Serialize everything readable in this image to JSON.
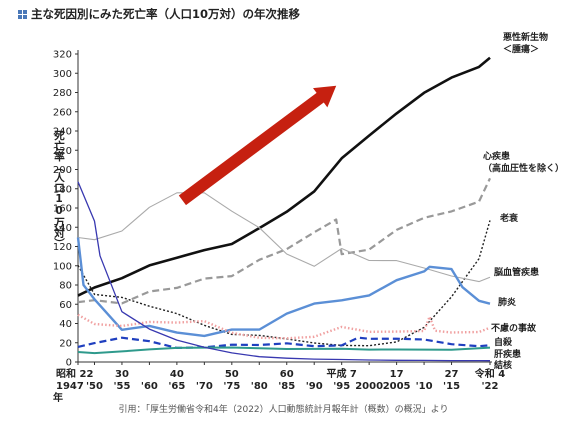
{
  "title": "主な死因別にみた死亡率（人口10万対）の年次推移",
  "title_icon": "plus-square-icon",
  "citation": "引用：「厚生労働省令和4年（2022）人口動態統計月報年計（概数）の概況」より",
  "colors": {
    "cancer": "#111111",
    "heart": "#999999",
    "senility": "#222222",
    "stroke": "#aaaaaa",
    "pneumonia": "#5b8fd6",
    "accident": "#f0a0a0",
    "suicide": "#1f3fbf",
    "liver": "#2e9a8c",
    "tb": "#3838b0",
    "arrow": "#c62010"
  },
  "chart_data": {
    "type": "line",
    "title": "主な死因別にみた死亡率（人口10万対）の年次推移",
    "ylabel": "死亡率（人口10万対）",
    "xlabel": "年",
    "ylim": [
      0,
      320
    ],
    "yticks": [
      0,
      20,
      40,
      60,
      80,
      100,
      120,
      140,
      160,
      180,
      200,
      220,
      240,
      260,
      280,
      300,
      320
    ],
    "xlim": [
      1947,
      2022
    ],
    "xtick_labels": [
      {
        "year": 1947,
        "top": "昭和 22",
        "bottom": "1947"
      },
      {
        "year": 1950,
        "top": "",
        "bottom": "'50"
      },
      {
        "year": 1955,
        "top": "30",
        "bottom": "'55"
      },
      {
        "year": 1960,
        "top": "",
        "bottom": "'60"
      },
      {
        "year": 1965,
        "top": "40",
        "bottom": "'65"
      },
      {
        "year": 1970,
        "top": "",
        "bottom": "'70"
      },
      {
        "year": 1975,
        "top": "50",
        "bottom": "'75"
      },
      {
        "year": 1980,
        "top": "",
        "bottom": "'80"
      },
      {
        "year": 1985,
        "top": "60",
        "bottom": "'85"
      },
      {
        "year": 1990,
        "top": "",
        "bottom": "'90"
      },
      {
        "year": 1995,
        "top": "平成 7",
        "bottom": "'95"
      },
      {
        "year": 2000,
        "top": "",
        "bottom": "2000"
      },
      {
        "year": 2005,
        "top": "17",
        "bottom": "2005"
      },
      {
        "year": 2010,
        "top": "",
        "bottom": "'10"
      },
      {
        "year": 2015,
        "top": "27",
        "bottom": "'15"
      },
      {
        "year": 2022,
        "top": "令和 4",
        "bottom": "'22"
      }
    ],
    "grid": false,
    "legend": "labels at right end of lines",
    "series": [
      {
        "name": "悪性新生物\n＜腫瘍＞",
        "key": "cancer",
        "style": "solid",
        "width": 2.6,
        "x": [
          1947,
          1950,
          1955,
          1960,
          1965,
          1970,
          1975,
          1980,
          1985,
          1990,
          1995,
          2000,
          2005,
          2010,
          2015,
          2020,
          2022
        ],
        "y": [
          69.0,
          77.4,
          87.1,
          100.4,
          108.4,
          116.3,
          122.6,
          139.1,
          156.1,
          177.2,
          211.6,
          235.2,
          258.3,
          279.7,
          295.5,
          306.6,
          316.1
        ]
      },
      {
        "name": "心疾患\n（高血圧性を除く）",
        "key": "heart",
        "style": "dashed",
        "width": 2.2,
        "x": [
          1947,
          1950,
          1955,
          1960,
          1965,
          1970,
          1975,
          1980,
          1985,
          1990,
          1994,
          1995,
          2000,
          2005,
          2010,
          2015,
          2020,
          2022
        ],
        "y": [
          62.2,
          64.2,
          60.9,
          73.2,
          77.0,
          86.7,
          89.2,
          106.2,
          117.3,
          134.8,
          148.0,
          112.0,
          116.8,
          137.2,
          149.8,
          156.5,
          166.6,
          190.9
        ]
      },
      {
        "name": "老衰",
        "key": "senility",
        "style": "dotted",
        "width": 1.4,
        "x": [
          1947,
          1950,
          1955,
          1960,
          1965,
          1970,
          1975,
          1980,
          1985,
          1990,
          1995,
          2000,
          2005,
          2010,
          2015,
          2020,
          2022
        ],
        "y": [
          100.4,
          70.2,
          67.1,
          58.0,
          50.3,
          38.1,
          28.7,
          27.6,
          24.0,
          19.7,
          17.2,
          16.9,
          20.9,
          35.9,
          67.7,
          107.3,
          147.1
        ]
      },
      {
        "name": "脳血管疾患",
        "key": "stroke",
        "style": "solid",
        "width": 1.1,
        "x": [
          1947,
          1950,
          1955,
          1960,
          1965,
          1970,
          1975,
          1980,
          1985,
          1990,
          1995,
          2000,
          2005,
          2010,
          2015,
          2020,
          2022
        ],
        "y": [
          129.4,
          127.1,
          136.1,
          160.7,
          175.8,
          175.8,
          156.7,
          139.5,
          112.2,
          99.4,
          117.9,
          105.5,
          105.3,
          97.7,
          89.4,
          83.5,
          88.1
        ]
      },
      {
        "name": "肺炎",
        "key": "pneumonia",
        "style": "solid",
        "width": 2.4,
        "x": [
          1947,
          1948,
          1950,
          1955,
          1960,
          1965,
          1970,
          1975,
          1980,
          1985,
          1990,
          1995,
          2000,
          2005,
          2010,
          2011,
          2015,
          2017,
          2020,
          2022
        ],
        "y": [
          129.4,
          80.0,
          65.1,
          33.5,
          37.5,
          30.5,
          27.1,
          33.7,
          33.7,
          50.3,
          60.7,
          64.1,
          69.2,
          85.0,
          94.1,
          98.9,
          96.5,
          77.7,
          63.6,
          60.6
        ]
      },
      {
        "name": "不慮の事故",
        "key": "accident",
        "style": "dotted-thick",
        "width": 2.4,
        "x": [
          1947,
          1950,
          1955,
          1960,
          1965,
          1970,
          1975,
          1980,
          1985,
          1990,
          1995,
          2000,
          2005,
          2010,
          2011,
          2012,
          2015,
          2020,
          2022
        ],
        "y": [
          49.0,
          39.5,
          37.4,
          41.7,
          40.9,
          42.5,
          30.3,
          25.1,
          24.6,
          26.2,
          36.5,
          31.4,
          31.6,
          32.2,
          47.1,
          32.4,
          30.6,
          31.2,
          35.6
        ]
      },
      {
        "name": "自殺",
        "key": "suicide",
        "style": "dashed",
        "width": 2.2,
        "x": [
          1947,
          1950,
          1955,
          1960,
          1965,
          1970,
          1975,
          1980,
          1985,
          1990,
          1995,
          1998,
          2000,
          2005,
          2010,
          2015,
          2020,
          2022
        ],
        "y": [
          15.7,
          19.6,
          25.2,
          21.6,
          14.7,
          15.3,
          18.0,
          17.7,
          19.4,
          16.4,
          17.2,
          25.4,
          24.1,
          24.2,
          23.4,
          18.5,
          16.4,
          17.4
        ]
      },
      {
        "name": "肝疾患",
        "key": "liver",
        "style": "solid",
        "width": 2.0,
        "x": [
          1947,
          1950,
          1955,
          1960,
          1965,
          1970,
          1975,
          1980,
          1985,
          1990,
          1995,
          2000,
          2005,
          2010,
          2015,
          2020,
          2022
        ],
        "y": [
          10.4,
          9.2,
          11.0,
          13.1,
          14.6,
          15.0,
          15.1,
          14.2,
          13.5,
          13.6,
          13.8,
          12.9,
          13.0,
          12.9,
          12.7,
          14.2,
          15.0
        ]
      },
      {
        "name": "結核",
        "key": "tb",
        "style": "solid",
        "width": 1.3,
        "x": [
          1947,
          1950,
          1951,
          1955,
          1960,
          1965,
          1970,
          1975,
          1980,
          1985,
          1990,
          1995,
          2000,
          2005,
          2010,
          2015,
          2020,
          2022
        ],
        "y": [
          187.2,
          146.4,
          110.3,
          52.3,
          34.2,
          22.8,
          15.4,
          9.5,
          5.5,
          3.9,
          3.0,
          2.6,
          2.1,
          1.8,
          1.7,
          1.5,
          1.5,
          1.4
        ]
      }
    ]
  }
}
